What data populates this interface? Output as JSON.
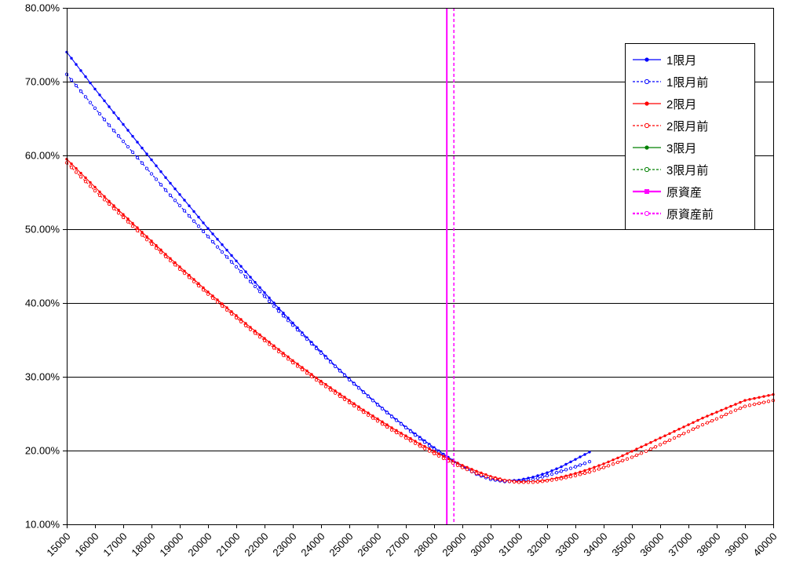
{
  "chart_data": {
    "type": "line",
    "title": "",
    "grid": "horizontal",
    "legend_position": "top-right",
    "colors": {
      "series_blue": "#0000ff",
      "series_red": "#ff0000",
      "series_green": "#008000",
      "underlying_magenta": "#ff00ff",
      "grid": "#000000",
      "text": "#000000"
    },
    "y_axis": {
      "min": 10,
      "max": 80,
      "step": 10,
      "labels": [
        "80.00%",
        "70.00%",
        "60.00%",
        "50.00%",
        "40.00%",
        "30.00%",
        "20.00%",
        "10.00%"
      ]
    },
    "x_axis": {
      "min": 15000,
      "max": 40000,
      "step": 1000,
      "labels": [
        "15000",
        "16000",
        "17000",
        "18000",
        "19000",
        "20000",
        "21000",
        "22000",
        "23000",
        "24000",
        "25000",
        "26000",
        "27000",
        "28000",
        "29000",
        "30000",
        "31000",
        "32000",
        "33000",
        "34000",
        "35000",
        "36000",
        "37000",
        "38000",
        "39000",
        "40000"
      ]
    },
    "series": [
      {
        "name": "1限月",
        "color": "#0000ff",
        "style": "solid",
        "marker": "filled",
        "x_start": 15000,
        "x_step": 500,
        "values": [
          74.0,
          71.5,
          69.0,
          66.6,
          64.2,
          61.8,
          59.4,
          57.0,
          54.7,
          52.4,
          50.1,
          47.9,
          45.7,
          43.5,
          41.4,
          39.3,
          37.3,
          35.3,
          33.4,
          31.5,
          29.7,
          28.0,
          26.3,
          24.7,
          23.2,
          21.8,
          20.4,
          19.1,
          17.9,
          16.9,
          16.2,
          15.9,
          16.0,
          16.4,
          17.0,
          17.8,
          18.8,
          19.8
        ]
      },
      {
        "name": "1限月前",
        "color": "#0000ff",
        "style": "dashed",
        "marker": "open",
        "x_start": 15000,
        "x_step": 500,
        "values": [
          71.0,
          68.7,
          66.4,
          64.1,
          61.9,
          59.7,
          57.5,
          55.3,
          53.2,
          51.1,
          49.0,
          46.9,
          44.9,
          42.9,
          40.9,
          38.9,
          37.0,
          35.1,
          33.2,
          31.4,
          29.6,
          27.9,
          26.2,
          24.6,
          23.1,
          21.6,
          20.2,
          18.9,
          17.8,
          16.8,
          16.1,
          15.8,
          15.8,
          16.1,
          16.6,
          17.2,
          17.8,
          18.5
        ]
      },
      {
        "name": "2限月",
        "color": "#ff0000",
        "style": "solid",
        "marker": "filled",
        "x_start": 15000,
        "x_step": 500,
        "values": [
          59.5,
          57.6,
          55.7,
          53.8,
          52.0,
          50.2,
          48.4,
          46.6,
          44.9,
          43.2,
          41.5,
          39.9,
          38.3,
          36.7,
          35.2,
          33.7,
          32.2,
          30.8,
          29.4,
          28.1,
          26.8,
          25.5,
          24.3,
          23.1,
          22.0,
          20.9,
          19.9,
          18.9,
          18.0,
          17.2,
          16.5,
          16.0,
          15.8,
          15.8,
          16.0,
          16.4,
          16.9,
          17.5,
          18.2,
          19.0,
          19.9,
          20.8,
          21.7,
          22.6,
          23.5,
          24.4,
          25.2,
          26.0,
          26.8,
          27.2,
          27.6
        ]
      },
      {
        "name": "2限月前",
        "color": "#ff0000",
        "style": "dashed",
        "marker": "open",
        "x_start": 15000,
        "x_step": 500,
        "values": [
          59.0,
          57.1,
          55.2,
          53.4,
          51.6,
          49.8,
          48.0,
          46.3,
          44.6,
          42.9,
          41.2,
          39.6,
          38.0,
          36.4,
          34.9,
          33.4,
          31.9,
          30.5,
          29.1,
          27.8,
          26.5,
          25.2,
          24.0,
          22.8,
          21.7,
          20.6,
          19.6,
          18.6,
          17.7,
          16.9,
          16.3,
          15.9,
          15.7,
          15.7,
          15.9,
          16.2,
          16.6,
          17.1,
          17.7,
          18.4,
          19.1,
          19.9,
          20.8,
          21.7,
          22.6,
          23.5,
          24.3,
          25.2,
          26.0,
          26.4,
          26.8
        ]
      },
      {
        "name": "3限月",
        "color": "#008000",
        "style": "solid",
        "marker": "filled",
        "x_start": 15000,
        "x_step": 500,
        "values": []
      },
      {
        "name": "3限月前",
        "color": "#008000",
        "style": "dashed",
        "marker": "open",
        "x_start": 15000,
        "x_step": 500,
        "values": []
      }
    ],
    "vlines": [
      {
        "name": "原資産",
        "color": "#ff00ff",
        "style": "solid",
        "marker": "filled-square",
        "x": 28450
      },
      {
        "name": "原資産前",
        "color": "#ff00ff",
        "style": "dashed",
        "marker": "open",
        "x": 28700
      }
    ]
  }
}
